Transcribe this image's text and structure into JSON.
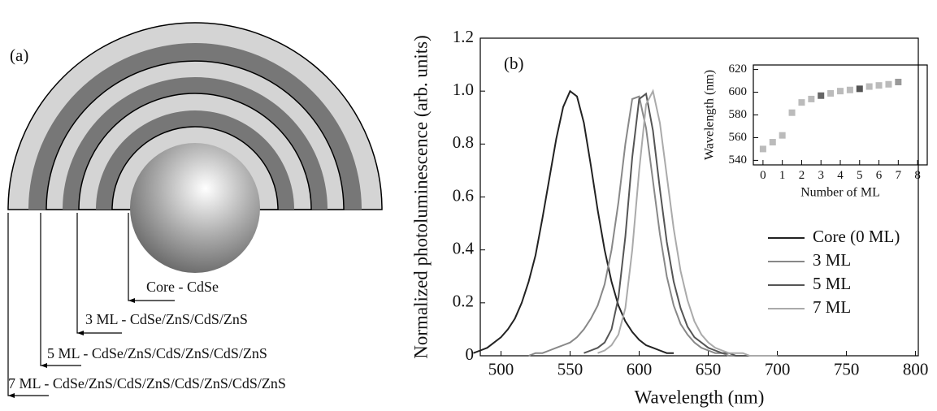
{
  "diagram": {
    "label": "(a)",
    "annotations": [
      "Core - CdSe",
      "3 ML - CdSe/ZnS/CdS/ZnS",
      "5 ML - CdSe/ZnS/CdS/ZnS/CdS/ZnS",
      "7 ML - CdSe/ZnS/CdS/ZnS/CdS/ZnS/CdS/ZnS"
    ]
  },
  "chart_data": [
    {
      "type": "line",
      "panel_label": "(b)",
      "x_label": "Wavelength  (nm)",
      "y_label": "Normalized photoluminescence  (arb. units)",
      "x": [
        480,
        485,
        490,
        495,
        500,
        505,
        510,
        515,
        520,
        525,
        530,
        535,
        540,
        545,
        550,
        555,
        560,
        565,
        570,
        575,
        580,
        585,
        590,
        595,
        600,
        605,
        610,
        615,
        620,
        625,
        630,
        635,
        640,
        645,
        650,
        655,
        660,
        665,
        670,
        675,
        680,
        685,
        690,
        695,
        700
      ],
      "series": [
        {
          "name": "Core (0 ML)",
          "color": "#222222",
          "values": [
            0.01,
            0.02,
            0.03,
            0.05,
            0.07,
            0.1,
            0.14,
            0.2,
            0.28,
            0.38,
            0.52,
            0.67,
            0.82,
            0.94,
            1.0,
            0.98,
            0.88,
            0.72,
            0.55,
            0.4,
            0.28,
            0.19,
            0.13,
            0.09,
            0.06,
            0.04,
            0.03,
            0.02,
            0.01,
            0.01,
            null,
            null,
            null,
            null,
            null,
            null,
            null,
            null,
            null,
            null,
            null,
            null,
            null,
            null,
            null
          ]
        },
        {
          "name": "3 ML",
          "color": "#888888",
          "values": [
            null,
            null,
            null,
            null,
            null,
            null,
            null,
            null,
            0.0,
            0.01,
            0.01,
            0.02,
            0.03,
            0.04,
            0.05,
            0.07,
            0.1,
            0.14,
            0.19,
            0.27,
            0.4,
            0.58,
            0.8,
            0.97,
            0.98,
            0.86,
            0.66,
            0.46,
            0.3,
            0.19,
            0.12,
            0.08,
            0.05,
            0.03,
            0.02,
            0.01,
            0.01,
            0.0,
            0,
            0,
            0,
            0,
            0,
            0,
            0
          ]
        },
        {
          "name": "5 ML",
          "color": "#555555",
          "values": [
            null,
            null,
            null,
            null,
            null,
            null,
            null,
            null,
            null,
            null,
            null,
            null,
            null,
            null,
            null,
            null,
            0.01,
            0.02,
            0.03,
            0.05,
            0.1,
            0.22,
            0.45,
            0.75,
            0.97,
            0.99,
            0.85,
            0.63,
            0.43,
            0.28,
            0.18,
            0.11,
            0.07,
            0.05,
            0.03,
            0.02,
            0.01,
            0.01,
            0.0,
            0,
            0,
            0,
            0,
            0,
            0
          ]
        },
        {
          "name": "7 ML",
          "color": "#aaaaaa",
          "values": [
            null,
            null,
            null,
            null,
            null,
            null,
            null,
            null,
            null,
            null,
            null,
            null,
            null,
            null,
            null,
            null,
            null,
            null,
            0.01,
            0.02,
            0.04,
            0.08,
            0.18,
            0.4,
            0.7,
            0.95,
            1.0,
            0.88,
            0.68,
            0.48,
            0.32,
            0.21,
            0.13,
            0.08,
            0.05,
            0.03,
            0.02,
            0.01,
            0.01,
            0.01,
            0.0,
            0,
            0,
            0,
            0
          ]
        }
      ],
      "xlim": [
        485,
        802
      ],
      "ylim": [
        0,
        1.2
      ],
      "xticks": [
        500,
        550,
        600,
        650,
        700,
        750,
        800
      ],
      "yticks": [
        0,
        0.2,
        0.4,
        0.6,
        0.8,
        {
          "value": 1,
          "label": "1.0"
        },
        1.2
      ]
    },
    {
      "type": "scatter",
      "x_label": "Number of ML",
      "y_label": "Wavelength  (nm)",
      "x": [
        0,
        0.5,
        1,
        1.5,
        2,
        2.5,
        3,
        3.5,
        4,
        4.5,
        5,
        5.5,
        6,
        6.5,
        7
      ],
      "values": [
        550,
        556,
        562,
        582,
        591,
        594,
        597,
        599,
        601,
        602,
        603,
        605,
        606,
        607,
        609
      ],
      "colors": [
        "#bbbbbb",
        "#bbbbbb",
        "#bbbbbb",
        "#bbbbbb",
        "#bbbbbb",
        "#bbbbbb",
        "#666666",
        "#bbbbbb",
        "#bbbbbb",
        "#bbbbbb",
        "#555555",
        "#bbbbbb",
        "#bbbbbb",
        "#bbbbbb",
        "#999999"
      ],
      "xlim": [
        -0.5,
        8.5
      ],
      "ylim": [
        536,
        624
      ],
      "xticks": [
        0,
        1,
        2,
        3,
        4,
        5,
        6,
        7,
        8
      ],
      "yticks": [
        540,
        560,
        580,
        600,
        620
      ]
    }
  ]
}
